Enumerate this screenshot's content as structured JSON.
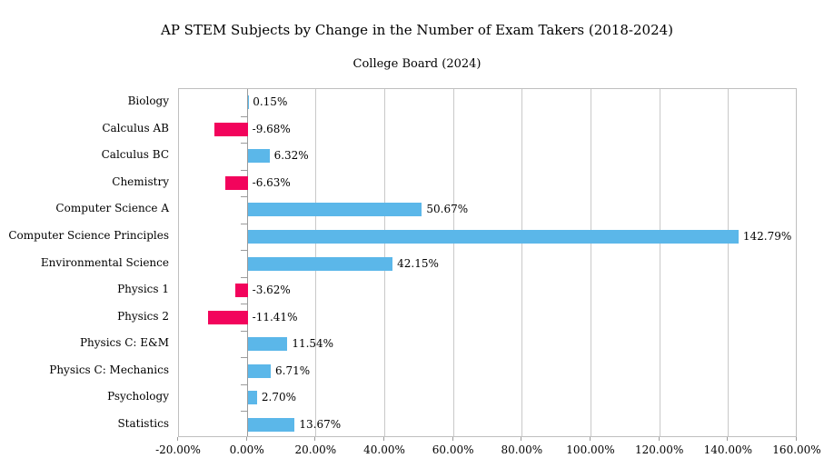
{
  "chart": {
    "title": "AP STEM Subjects by Change in the Number of Exam Takers (2018-2024)",
    "subtitle": "College Board (2024)"
  },
  "chart_data": {
    "type": "bar",
    "orientation": "horizontal",
    "title": "AP STEM Subjects by Change in the Number of Exam Takers (2018-2024)",
    "subtitle": "College Board (2024)",
    "categories": [
      "Biology",
      "Calculus AB",
      "Calculus BC",
      "Chemistry",
      "Computer Science A",
      "Computer Science Principles",
      "Environmental Science",
      "Physics 1",
      "Physics 2",
      "Physics C: E&M",
      "Physics C: Mechanics",
      "Psychology",
      "Statistics"
    ],
    "values": [
      0.15,
      -9.68,
      6.32,
      -6.63,
      50.67,
      142.79,
      42.15,
      -3.62,
      -11.41,
      11.54,
      6.71,
      2.7,
      13.67
    ],
    "data_labels": [
      "0.15%",
      "-9.68%",
      "6.32%",
      "-6.63%",
      "50.67%",
      "142.79%",
      "42.15%",
      "-3.62%",
      "-11.41%",
      "11.54%",
      "6.71%",
      "2.70%",
      "13.67%"
    ],
    "xlabel": "",
    "ylabel": "",
    "xlim": [
      -20,
      160
    ],
    "xtick_step": 20,
    "xtick_labels": [
      "-20.00%",
      "0.00%",
      "20.00%",
      "40.00%",
      "60.00%",
      "80.00%",
      "100.00%",
      "120.00%",
      "140.00%",
      "160.00%"
    ],
    "grid": true,
    "legend": false,
    "colors": {
      "positive": "#5bb7e9",
      "negative": "#f2045c",
      "gridline": "#c9c9c9",
      "zero_axis": "#9b9b9b",
      "border": "#bfbfbf",
      "text": "#000000"
    }
  }
}
